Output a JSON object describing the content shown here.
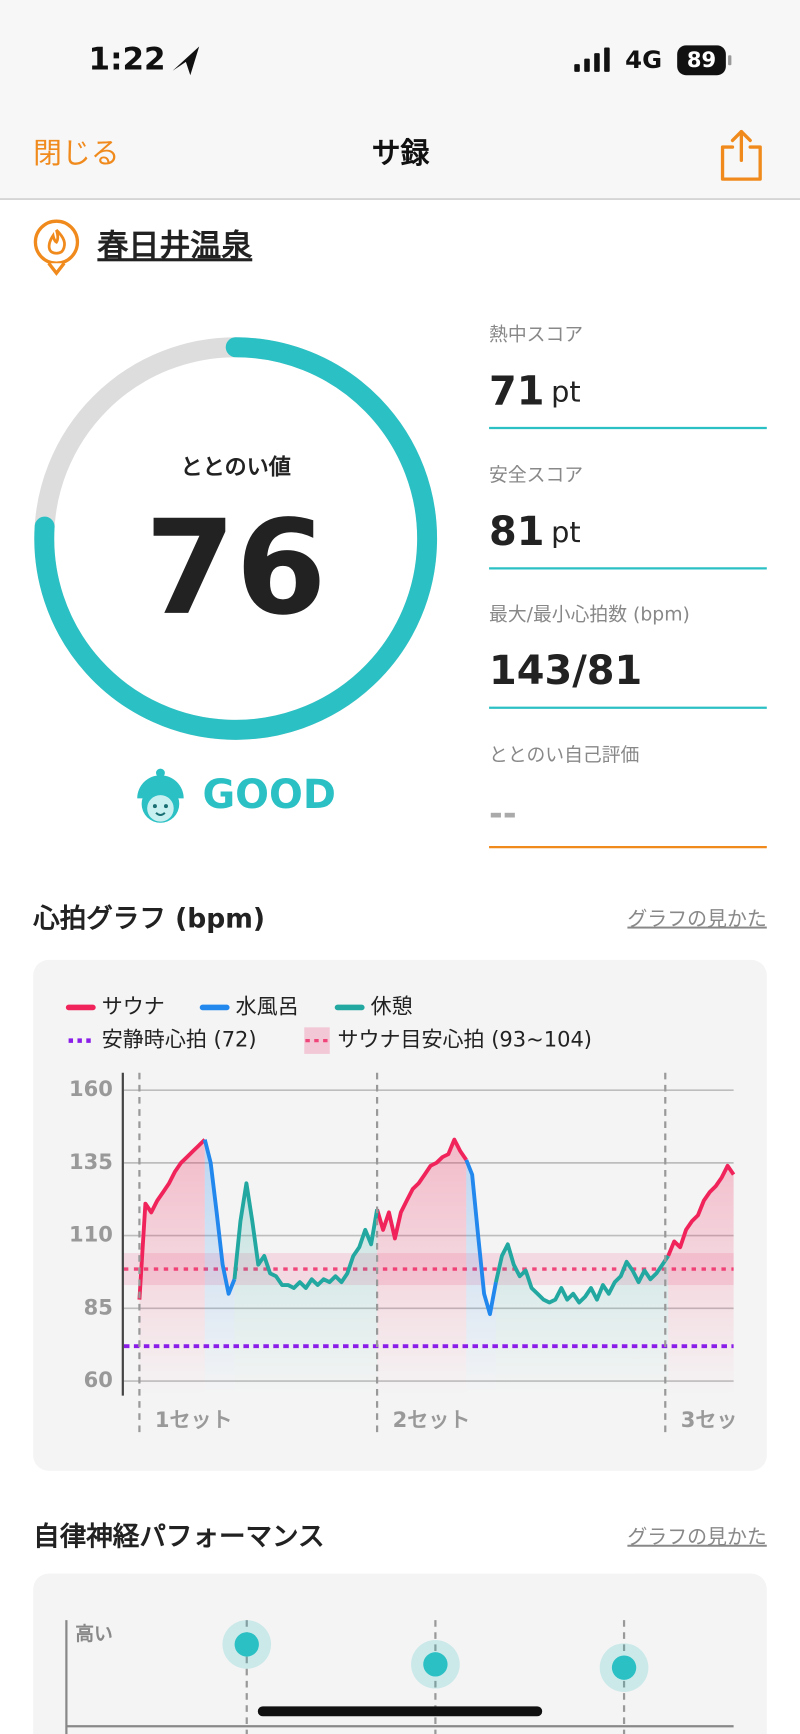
{
  "status_bar": {
    "time": "1:22",
    "network": "4G",
    "battery": "89"
  },
  "nav": {
    "close": "閉じる",
    "title": "サ録"
  },
  "place": "春日井温泉",
  "score": {
    "label": "ととのい値",
    "value": 76,
    "range": [
      0,
      100
    ],
    "rating": "GOOD"
  },
  "stats": [
    {
      "label": "熱中スコア",
      "value": 71,
      "unit": "pt"
    },
    {
      "label": "安全スコア",
      "value": 81,
      "unit": "pt"
    },
    {
      "label": "最大/最小心拍数 (bpm)",
      "value": "143/81"
    },
    {
      "label": "ととのい自己評価",
      "value": "--"
    }
  ],
  "chart_data": [
    {
      "type": "line",
      "title": "心拍グラフ (bpm)",
      "link": "グラフの見かた",
      "xlim": [
        0,
        100
      ],
      "ylim": [
        55,
        166
      ],
      "yticks": [
        60,
        85,
        110,
        135,
        160
      ],
      "grid": true,
      "sets": [
        {
          "label": "1セット",
          "x": 0
        },
        {
          "label": "2セット",
          "x": 40
        },
        {
          "label": "3セッ",
          "x": 88.5
        }
      ],
      "series": [
        {
          "name": "サウナ",
          "color": "#f0245a",
          "values": [
            88,
            121,
            118,
            122,
            125,
            128,
            132,
            135,
            137,
            139,
            141,
            143,
            null,
            null,
            null,
            null,
            null,
            null,
            null,
            null,
            null,
            null,
            null,
            null,
            null,
            null,
            null,
            null,
            null,
            null,
            null,
            null,
            null,
            null,
            null,
            null,
            null,
            null,
            null,
            null,
            119,
            112,
            118,
            109,
            118,
            122,
            126,
            128,
            131,
            134,
            135,
            137,
            138,
            143,
            139,
            136,
            null,
            null,
            null,
            null,
            null,
            null,
            null,
            null,
            null,
            null,
            null,
            null,
            null,
            null,
            null,
            null,
            null,
            null,
            null,
            null,
            null,
            null,
            null,
            null,
            null,
            null,
            null,
            null,
            null,
            null,
            null,
            null,
            null,
            103,
            108,
            106,
            112,
            115,
            117,
            122,
            125,
            127,
            130,
            134,
            131
          ]
        },
        {
          "name": "水風呂",
          "color": "#2288ee",
          "values": [
            null,
            null,
            null,
            null,
            null,
            null,
            null,
            null,
            null,
            null,
            null,
            143,
            135,
            118,
            100,
            90,
            95,
            null,
            null,
            null,
            null,
            null,
            null,
            null,
            null,
            null,
            null,
            null,
            null,
            null,
            null,
            null,
            null,
            null,
            null,
            null,
            null,
            null,
            null,
            null,
            null,
            null,
            null,
            null,
            null,
            null,
            null,
            null,
            null,
            null,
            null,
            null,
            null,
            null,
            null,
            136,
            131,
            110,
            90,
            83,
            94,
            null,
            null,
            null,
            null,
            null,
            null,
            null,
            null,
            null,
            null,
            null,
            null,
            null,
            null,
            null,
            null,
            null,
            null,
            null,
            null,
            null,
            null,
            null,
            null,
            null,
            null,
            null,
            null,
            null,
            null,
            null,
            null,
            null,
            null,
            null,
            null,
            null,
            null,
            null,
            null
          ]
        },
        {
          "name": "休憩",
          "color": "#22a8a0",
          "values": [
            null,
            null,
            null,
            null,
            null,
            null,
            null,
            null,
            null,
            null,
            null,
            null,
            null,
            null,
            null,
            null,
            95,
            115,
            128,
            115,
            100,
            103,
            97,
            96,
            93,
            93,
            92,
            94,
            92,
            95,
            93,
            95,
            94,
            96,
            94,
            97,
            103,
            106,
            112,
            107,
            119,
            null,
            null,
            null,
            null,
            null,
            null,
            null,
            null,
            null,
            null,
            null,
            null,
            null,
            null,
            null,
            null,
            null,
            null,
            null,
            94,
            103,
            107,
            100,
            96,
            98,
            92,
            90,
            88,
            87,
            88,
            92,
            88,
            90,
            87,
            89,
            92,
            88,
            93,
            90,
            94,
            96,
            101,
            98,
            94,
            98,
            95,
            97,
            100,
            103,
            null,
            null,
            null,
            null,
            null,
            null,
            null,
            null,
            null,
            null,
            null
          ]
        }
      ],
      "reference_lines": [
        {
          "name": "安静時心拍 (72)",
          "value": 72,
          "color": "#8a1de8"
        }
      ],
      "reference_bands": [
        {
          "name": "サウナ目安心拍 (93~104)",
          "range": [
            93,
            104
          ],
          "color": "#f0457a"
        }
      ]
    },
    {
      "type": "dot",
      "title": "自律神経パフォーマンス",
      "link": "グラフの見かた",
      "ylim": [
        0,
        1
      ],
      "yticks": [
        {
          "value": 1,
          "label": "高い"
        }
      ],
      "values": [
        0.97,
        0.91,
        0.9
      ],
      "color": "#2bc0c4"
    }
  ]
}
